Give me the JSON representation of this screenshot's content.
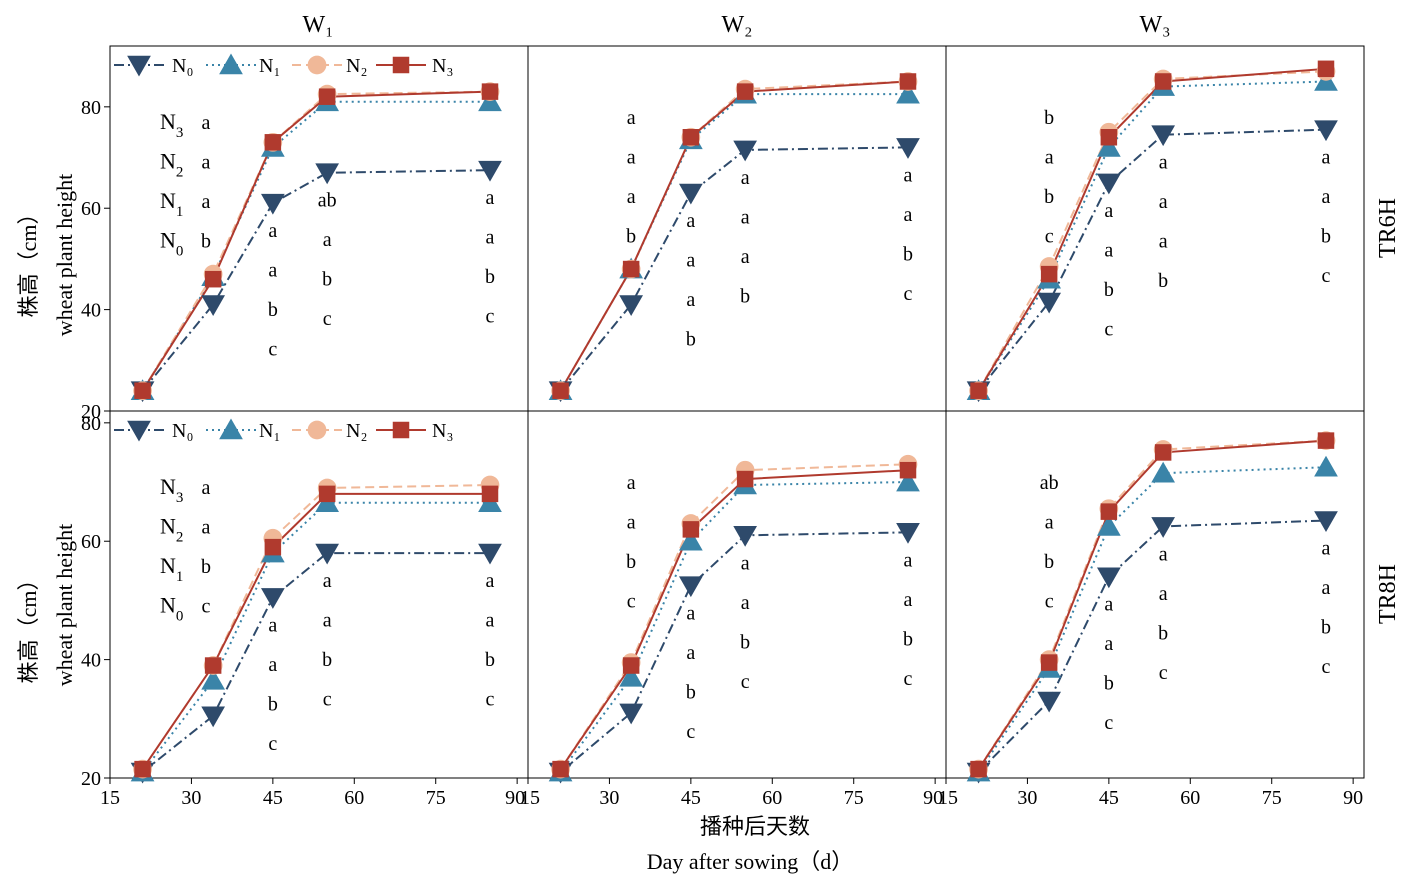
{
  "chart_data": {
    "type": "line",
    "columns": [
      "W₁",
      "W₂",
      "W₃"
    ],
    "rows": [
      "TR6H",
      "TR8H"
    ],
    "ylabel_cn": "株高（cm）",
    "ylabel_en": "wheat plant height",
    "xlabel_cn": "播种后天数",
    "xlabel_en": "Day after sowing（d）",
    "x_ticks": [
      "15",
      "30",
      "45",
      "60",
      "75",
      "90"
    ],
    "xlim": [
      15,
      92
    ],
    "panels_rows": [
      {
        "ylim": [
          20,
          92
        ],
        "y_ticks": [
          "20",
          "40",
          "60",
          "80"
        ]
      },
      {
        "ylim": [
          20,
          82
        ],
        "y_ticks": [
          "20",
          "40",
          "60",
          "80"
        ]
      }
    ],
    "legend": [
      "N₀",
      "N₁",
      "N₂",
      "N₃"
    ],
    "series_styles": [
      {
        "name": "N₀",
        "color": "#2e4a6b",
        "marker": "triangle-down",
        "dash": "10,4,2,4"
      },
      {
        "name": "N₁",
        "color": "#3a84a8",
        "marker": "triangle-up",
        "dash": "2,4"
      },
      {
        "name": "N₂",
        "color": "#f0b898",
        "marker": "circle",
        "dash": "9,5"
      },
      {
        "name": "N₃",
        "color": "#b03a2e",
        "marker": "square",
        "dash": ""
      }
    ],
    "x": [
      21,
      34,
      45,
      55,
      85
    ],
    "panels": [
      {
        "row": 0,
        "col": 0,
        "series": [
          [
            24,
            41,
            61,
            67,
            67.5
          ],
          [
            24,
            46.5,
            72,
            81,
            81
          ],
          [
            24,
            47,
            73,
            82.5,
            83
          ],
          [
            24,
            46,
            73,
            82,
            83
          ]
        ],
        "n_letters": [
          "a",
          "a",
          "a",
          "b"
        ],
        "letters": [
          [],
          [],
          [
            "a",
            "a",
            "b",
            "c"
          ],
          [
            "ab",
            "a",
            "b",
            "c"
          ],
          [
            "a",
            "a",
            "b",
            "c"
          ]
        ]
      },
      {
        "row": 0,
        "col": 1,
        "series": [
          [
            24,
            41,
            63,
            71.5,
            72
          ],
          [
            24,
            48,
            73.5,
            82.5,
            82.5
          ],
          [
            24,
            48,
            74,
            83.5,
            85
          ],
          [
            24,
            48,
            74,
            83,
            85
          ]
        ],
        "letters": [
          [],
          [
            "a",
            "a",
            "a",
            "b"
          ],
          [
            "a",
            "a",
            "a",
            "b"
          ],
          [
            "a",
            "a",
            "a",
            "b"
          ],
          [
            "a",
            "a",
            "b",
            "c"
          ]
        ]
      },
      {
        "row": 0,
        "col": 2,
        "series": [
          [
            24,
            41.5,
            65,
            74.5,
            75.5
          ],
          [
            24,
            46,
            72,
            84,
            85
          ],
          [
            24,
            48.5,
            75,
            85.5,
            87
          ],
          [
            24,
            47,
            74,
            85,
            87.5
          ]
        ],
        "letters": [
          [],
          [
            "b",
            "a",
            "b",
            "c"
          ],
          [
            "a",
            "a",
            "b",
            "c"
          ],
          [
            "a",
            "a",
            "a",
            "b"
          ],
          [
            "a",
            "a",
            "b",
            "c"
          ]
        ]
      },
      {
        "row": 1,
        "col": 0,
        "series": [
          [
            21,
            30.5,
            50.5,
            58,
            58
          ],
          [
            21,
            36.5,
            58,
            66.5,
            66.5
          ],
          [
            21.5,
            39,
            60.5,
            69,
            69.5
          ],
          [
            21.5,
            39,
            59,
            68,
            68
          ]
        ],
        "n_letters": [
          "a",
          "a",
          "b",
          "c"
        ],
        "letters": [
          [],
          [],
          [
            "a",
            "a",
            "b",
            "c"
          ],
          [
            "a",
            "a",
            "b",
            "c"
          ],
          [
            "a",
            "a",
            "b",
            "c"
          ]
        ]
      },
      {
        "row": 1,
        "col": 1,
        "series": [
          [
            21,
            31,
            52.5,
            61,
            61.5
          ],
          [
            21,
            37,
            60,
            69.5,
            70
          ],
          [
            21.5,
            39.5,
            63,
            72,
            73
          ],
          [
            21.5,
            39,
            62,
            70.5,
            72
          ]
        ],
        "letters": [
          [],
          [
            "a",
            "a",
            "b",
            "c"
          ],
          [
            "a",
            "a",
            "b",
            "c"
          ],
          [
            "a",
            "a",
            "b",
            "c"
          ],
          [
            "a",
            "a",
            "b",
            "c"
          ]
        ]
      },
      {
        "row": 1,
        "col": 2,
        "series": [
          [
            21,
            33,
            54,
            62.5,
            63.5
          ],
          [
            21,
            38.5,
            62.5,
            71.5,
            72.5
          ],
          [
            21.5,
            40,
            65.5,
            75.5,
            77
          ],
          [
            21.5,
            39.5,
            65,
            75,
            77
          ]
        ],
        "letters": [
          [],
          [
            "ab",
            "a",
            "b",
            "c"
          ],
          [
            "a",
            "a",
            "b",
            "c"
          ],
          [
            "a",
            "a",
            "b",
            "c"
          ],
          [
            "a",
            "a",
            "b",
            "c"
          ]
        ]
      }
    ]
  }
}
